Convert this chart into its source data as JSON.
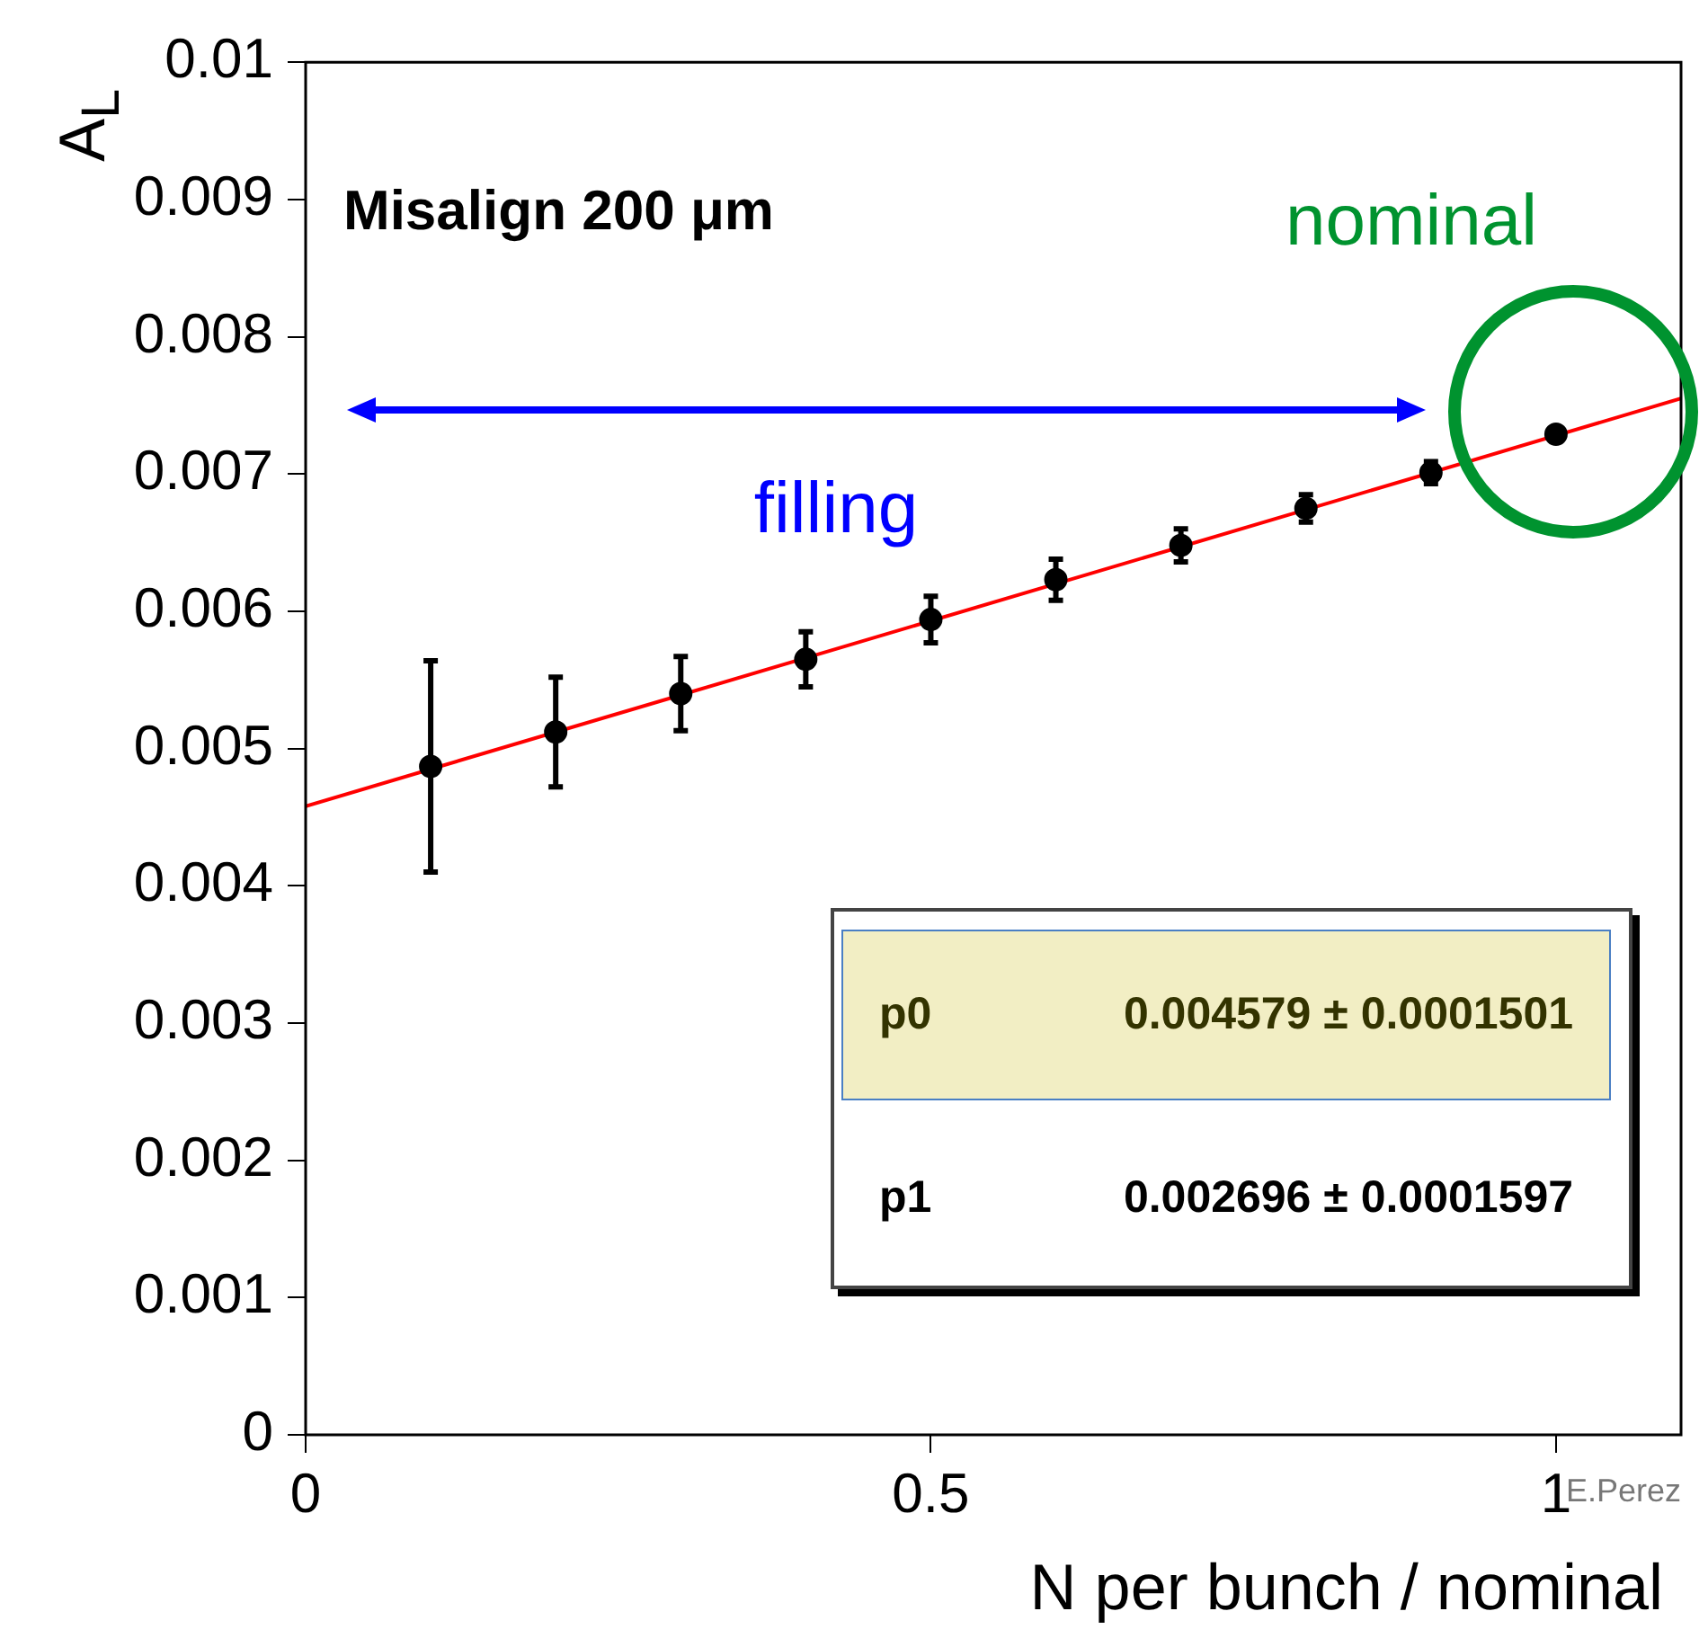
{
  "chart_data": {
    "type": "scatter",
    "xlabel": "N per bunch / nominal",
    "ylabel": "A$_{L}$",
    "xlim": [
      0,
      1.1
    ],
    "ylim": [
      0,
      0.01
    ],
    "xticks": [
      0,
      0.5,
      1
    ],
    "yticks": [
      0,
      0.001,
      0.002,
      0.003,
      0.004,
      0.005,
      0.006,
      0.007,
      0.008,
      0.009,
      0.01
    ],
    "grid": false,
    "legend": false,
    "annotations": [
      "Misalign 200 μm",
      "filling",
      "nominal",
      "p0",
      "0.004579 ± 0.0001501",
      "p1",
      "0.002696 ± 0.0001597",
      "E.Perez"
    ],
    "series": [
      {
        "marker": "circle",
        "color": "#000000",
        "x": [
          0.1,
          0.2,
          0.3,
          0.4,
          0.5,
          0.6,
          0.7,
          0.8,
          0.9,
          1.0
        ],
        "values": [
          0.00487,
          0.00512,
          0.0054,
          0.00565,
          0.00594,
          0.00623,
          0.00648,
          0.00675,
          0.00701,
          0.00729
        ],
        "errors": [
          0.00077,
          0.0004,
          0.00027,
          0.0002,
          0.00017,
          0.00015,
          0.00012,
          0.0001,
          8e-05,
          null
        ]
      },
      {
        "type": "line",
        "color": "#ff0000",
        "x": [
          0,
          1.1
        ],
        "values": [
          0.00458,
          0.00755
        ],
        "marker": "none"
      }
    ]
  }
}
